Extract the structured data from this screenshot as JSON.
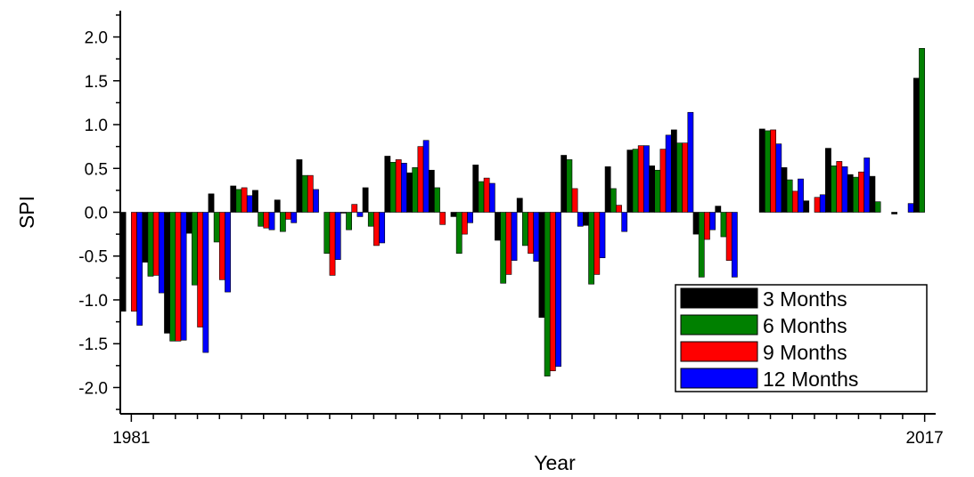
{
  "chart_data": {
    "type": "bar",
    "title": "",
    "xlabel": "Year",
    "ylabel": "SPI",
    "ylim": [
      -2.3,
      2.3
    ],
    "yticks": [
      "-2.0",
      "-1.5",
      "-1.0",
      "-0.5",
      "0.0",
      "0.5",
      "1.0",
      "1.5",
      "2.0"
    ],
    "xtick_labels": [
      "1981",
      "2017"
    ],
    "categories": [
      "1981",
      "1982",
      "1983",
      "1984",
      "1985",
      "1986",
      "1987",
      "1988",
      "1989",
      "1990",
      "1991",
      "1992",
      "1993",
      "1994",
      "1995",
      "1996",
      "1997",
      "1998",
      "1999",
      "2000",
      "2001",
      "2002",
      "2003",
      "2004",
      "2005",
      "2006",
      "2007",
      "2008",
      "2009",
      "2010",
      "2011",
      "2012",
      "2013",
      "2014",
      "2015",
      "2016",
      "2017"
    ],
    "series": [
      {
        "name": "3 Months",
        "color": "#000000",
        "values": [
          -1.13,
          -0.57,
          -1.38,
          -0.24,
          0.21,
          0.3,
          0.25,
          0.14,
          0.6,
          0.0,
          -0.01,
          0.28,
          0.64,
          0.45,
          0.48,
          -0.05,
          0.54,
          -0.32,
          0.16,
          -1.2,
          0.65,
          -0.15,
          0.52,
          0.71,
          0.53,
          0.94,
          -0.25,
          0.07,
          0.0,
          0.95,
          0.51,
          0.13,
          0.73,
          0.43,
          0.41,
          -0.02,
          1.53
        ]
      },
      {
        "name": "6 Months",
        "color": "#008000",
        "values": [
          0.0,
          -0.73,
          -1.47,
          -0.83,
          -0.34,
          0.26,
          -0.16,
          -0.22,
          0.42,
          -0.47,
          -0.2,
          -0.16,
          0.57,
          0.51,
          0.28,
          -0.47,
          0.35,
          -0.81,
          -0.38,
          -1.87,
          0.6,
          -0.82,
          0.27,
          0.72,
          0.48,
          0.79,
          -0.74,
          -0.28,
          0.0,
          0.93,
          0.37,
          0.0,
          0.53,
          0.4,
          0.12,
          0.0,
          1.87
        ]
      },
      {
        "name": "9 Months",
        "color": "#ff0000",
        "values": [
          -1.13,
          -0.72,
          -1.47,
          -1.31,
          -0.77,
          0.28,
          -0.18,
          -0.08,
          0.42,
          -0.72,
          0.09,
          -0.38,
          0.6,
          0.75,
          -0.14,
          -0.25,
          0.39,
          -0.71,
          -0.47,
          -1.81,
          0.27,
          -0.71,
          0.08,
          0.76,
          0.72,
          0.79,
          -0.31,
          -0.55,
          0.0,
          0.94,
          0.24,
          0.17,
          0.58,
          0.46,
          0.0,
          0.0,
          0.0
        ]
      },
      {
        "name": "12 Months",
        "color": "#0000ff",
        "values": [
          -1.29,
          -0.92,
          -1.46,
          -1.6,
          -0.91,
          0.19,
          -0.2,
          -0.12,
          0.26,
          -0.54,
          -0.05,
          -0.35,
          0.56,
          0.82,
          0.0,
          -0.12,
          0.33,
          -0.55,
          -0.56,
          -1.76,
          -0.16,
          -0.52,
          -0.22,
          0.76,
          0.88,
          1.14,
          -0.2,
          -0.74,
          0.0,
          0.78,
          0.38,
          0.2,
          0.52,
          0.62,
          0.0,
          0.1,
          0.0
        ]
      }
    ],
    "legend_position": "bottom-right",
    "grid": false
  }
}
